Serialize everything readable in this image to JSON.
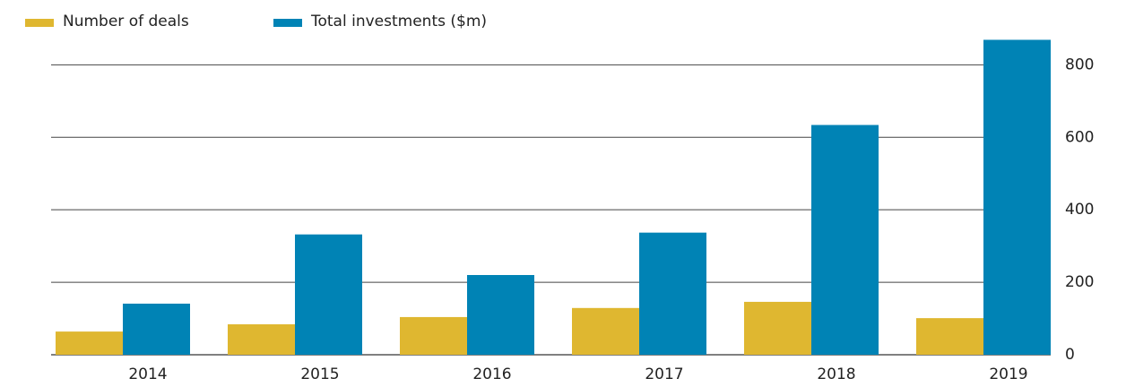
{
  "chart_data": {
    "type": "bar",
    "categories": [
      "2014",
      "2015",
      "2016",
      "2017",
      "2018",
      "2019"
    ],
    "series": [
      {
        "name": "Number of deals",
        "color": "#dfb730",
        "values": [
          64,
          84,
          104,
          129,
          146,
          101
        ]
      },
      {
        "name": "Total investments ($m)",
        "color": "#0083b5",
        "values": [
          141,
          332,
          220,
          337,
          634,
          869
        ]
      }
    ],
    "ylim": [
      0,
      880
    ],
    "yticks": [
      0,
      200,
      400,
      600,
      800
    ],
    "grid": true,
    "legend": "top-left"
  }
}
